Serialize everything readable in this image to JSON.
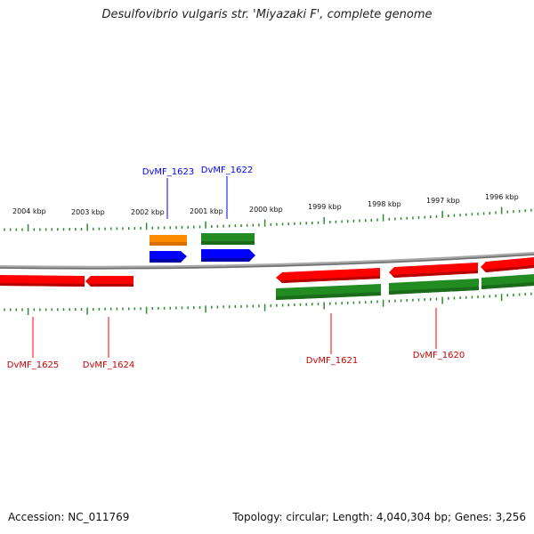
{
  "title": "Desulfovibrio vulgaris str. 'Miyazaki F', complete genome",
  "footer": {
    "accession": "Accession: NC_011769",
    "topology": "Topology: circular; Length: 4,040,304 bp; Genes: 3,256"
  },
  "scale_labels": [
    "2004 kbp",
    "2003 kbp",
    "2002 kbp",
    "2001 kbp",
    "2000 kbp",
    "1999 kbp",
    "1998 kbp",
    "1997 kbp",
    "1996 kbp"
  ],
  "genes": [
    {
      "label": "DvMF_1625",
      "strand": "-",
      "color": "#ff0000"
    },
    {
      "label": "DvMF_1624",
      "strand": "-",
      "color": "#ff0000"
    },
    {
      "label": "DvMF_1623",
      "strand": "+",
      "color": "#0000ff"
    },
    {
      "label": "DvMF_1622",
      "strand": "+",
      "color": "#0000ff"
    },
    {
      "label": "DvMF_1621",
      "strand": "-",
      "color": "#ff0000"
    },
    {
      "label": "DvMF_1620",
      "strand": "-",
      "color": "#ff0000"
    }
  ],
  "colors": {
    "backbone": "#8a8a8a",
    "ticks": "#2e8b2e",
    "gene_forward": "#0000ff",
    "gene_reverse": "#ff0000",
    "feature_orange": "#ff8c00",
    "feature_green": "#228b22"
  }
}
